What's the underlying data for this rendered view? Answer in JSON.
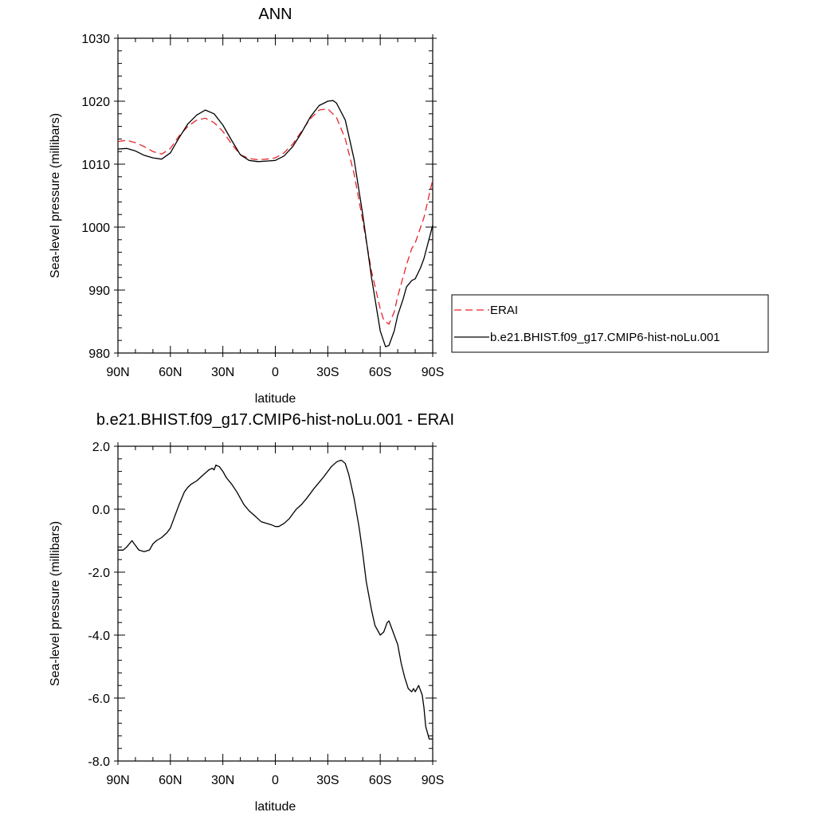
{
  "chart_data": [
    {
      "type": "line",
      "title": "ANN",
      "xlabel": "latitude",
      "ylabel": "Sea-level pressure (millibars)",
      "xlim": [
        90,
        -90
      ],
      "ylim": [
        980,
        1030
      ],
      "xticks": [
        90,
        60,
        30,
        0,
        -30,
        -60,
        -90
      ],
      "xtick_labels": [
        "90N",
        "60N",
        "30N",
        "0",
        "30S",
        "60S",
        "90S"
      ],
      "yticks": [
        980,
        990,
        1000,
        1010,
        1020,
        1030
      ],
      "ytick_labels": [
        "980",
        "990",
        "1000",
        "1010",
        "1020",
        "1030"
      ],
      "legend": "right",
      "grid": false,
      "series": [
        {
          "name": "ERAI",
          "color": "#e8242a",
          "dash": "dashed",
          "x": [
            90,
            85,
            80,
            75,
            70,
            65,
            60,
            55,
            50,
            45,
            40,
            35,
            30,
            25,
            20,
            15,
            10,
            5,
            0,
            -5,
            -10,
            -15,
            -20,
            -25,
            -30,
            -35,
            -40,
            -45,
            -50,
            -55,
            -60,
            -62,
            -65,
            -68,
            -70,
            -75,
            -78,
            -80,
            -85,
            -90
          ],
          "y": [
            1013.6,
            1013.8,
            1013.4,
            1012.8,
            1012.0,
            1011.6,
            1012.5,
            1014.5,
            1016.0,
            1017.0,
            1017.3,
            1016.6,
            1015.2,
            1013.2,
            1011.5,
            1010.9,
            1010.7,
            1010.8,
            1011.0,
            1011.8,
            1013.2,
            1015.2,
            1017.2,
            1018.6,
            1018.8,
            1017.4,
            1014.0,
            1008.5,
            1001.0,
            993.0,
            987.0,
            985.2,
            984.6,
            986.5,
            989.0,
            994.0,
            996.6,
            997.5,
            1001.5,
            1007.5
          ]
        },
        {
          "name": "b.e21.BHIST.f09_g17.CMIP6-hist-noLu.001",
          "color": "#000000",
          "dash": "solid",
          "x": [
            90,
            85,
            80,
            75,
            70,
            65,
            60,
            55,
            50,
            45,
            40,
            35,
            30,
            25,
            20,
            15,
            10,
            5,
            0,
            -5,
            -10,
            -15,
            -20,
            -25,
            -30,
            -33,
            -35,
            -40,
            -45,
            -50,
            -55,
            -60,
            -63,
            -65,
            -68,
            -70,
            -73,
            -75,
            -78,
            -80,
            -83,
            -85,
            -90
          ],
          "y": [
            1012.4,
            1012.5,
            1012.1,
            1011.4,
            1011.0,
            1010.8,
            1011.8,
            1014.2,
            1016.4,
            1017.8,
            1018.6,
            1018.0,
            1016.2,
            1013.8,
            1011.5,
            1010.6,
            1010.4,
            1010.5,
            1010.6,
            1011.3,
            1012.8,
            1015.0,
            1017.5,
            1019.3,
            1020.0,
            1020.1,
            1019.7,
            1017.0,
            1010.8,
            1002.0,
            992.0,
            983.5,
            981.0,
            981.2,
            983.5,
            986.0,
            988.5,
            990.5,
            991.5,
            991.8,
            993.5,
            995.0,
            1000.3
          ]
        }
      ]
    },
    {
      "type": "line",
      "title": "b.e21.BHIST.f09_g17.CMIP6-hist-noLu.001 - ERAI",
      "xlabel": "latitude",
      "ylabel": "Sea-level pressure (millibars)",
      "xlim": [
        90,
        -90
      ],
      "ylim": [
        -8.0,
        2.0
      ],
      "xticks": [
        90,
        60,
        30,
        0,
        -30,
        -60,
        -90
      ],
      "xtick_labels": [
        "90N",
        "60N",
        "30N",
        "0",
        "30S",
        "60S",
        "90S"
      ],
      "yticks": [
        -8.0,
        -6.0,
        -4.0,
        -2.0,
        0.0,
        2.0
      ],
      "ytick_labels": [
        "-8.0",
        "-6.0",
        "-4.0",
        "-2.0",
        "0.0",
        "2.0"
      ],
      "grid": false,
      "series": [
        {
          "color": "#000000",
          "dash": "solid",
          "x": [
            90,
            87,
            85,
            82,
            80,
            78,
            75,
            72,
            70,
            68,
            65,
            62,
            60,
            58,
            55,
            52,
            50,
            48,
            45,
            42,
            40,
            38,
            36,
            35,
            34,
            32,
            30,
            28,
            25,
            22,
            20,
            18,
            15,
            12,
            10,
            8,
            5,
            2,
            0,
            -2,
            -5,
            -8,
            -10,
            -12,
            -15,
            -18,
            -20,
            -22,
            -25,
            -28,
            -30,
            -32,
            -35,
            -37,
            -38,
            -40,
            -42,
            -45,
            -48,
            -50,
            -52,
            -55,
            -57,
            -60,
            -62,
            -64,
            -65,
            -66,
            -68,
            -70,
            -72,
            -74,
            -76,
            -78,
            -79,
            -80,
            -81,
            -82,
            -83,
            -84,
            -85,
            -86,
            -88,
            -90
          ],
          "y": [
            -1.3,
            -1.3,
            -1.2,
            -1.0,
            -1.15,
            -1.3,
            -1.35,
            -1.3,
            -1.1,
            -1.0,
            -0.9,
            -0.75,
            -0.6,
            -0.3,
            0.15,
            0.55,
            0.7,
            0.8,
            0.9,
            1.05,
            1.15,
            1.25,
            1.3,
            1.25,
            1.4,
            1.35,
            1.2,
            1.0,
            0.8,
            0.55,
            0.35,
            0.15,
            -0.05,
            -0.2,
            -0.3,
            -0.4,
            -0.45,
            -0.5,
            -0.55,
            -0.55,
            -0.45,
            -0.3,
            -0.15,
            0.0,
            0.15,
            0.35,
            0.5,
            0.65,
            0.85,
            1.05,
            1.2,
            1.35,
            1.5,
            1.55,
            1.55,
            1.45,
            1.1,
            0.35,
            -0.6,
            -1.4,
            -2.3,
            -3.2,
            -3.7,
            -4.0,
            -3.9,
            -3.6,
            -3.55,
            -3.7,
            -4.0,
            -4.3,
            -4.9,
            -5.35,
            -5.7,
            -5.8,
            -5.7,
            -5.8,
            -5.7,
            -5.6,
            -5.75,
            -5.9,
            -6.3,
            -6.9,
            -7.3,
            -7.3
          ]
        }
      ]
    }
  ]
}
